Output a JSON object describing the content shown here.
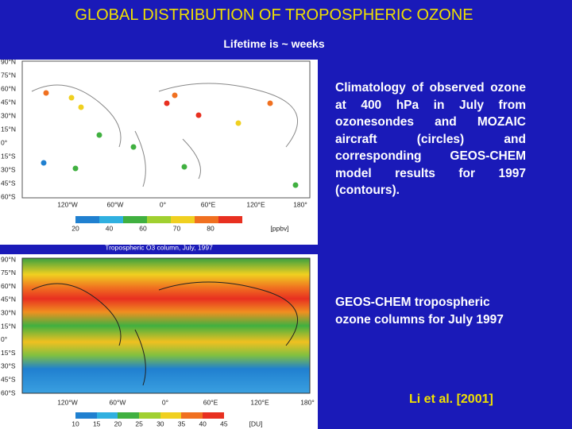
{
  "header": {
    "title": "GLOBAL DISTRIBUTION OF TROPOSPHERIC OZONE",
    "subtitle": "Lifetime is ~ weeks"
  },
  "map1": {
    "lat_labels": [
      "90°N",
      "75°N",
      "60°N",
      "45°N",
      "30°N",
      "15°N",
      "0°",
      "15°S",
      "30°S",
      "45°S",
      "60°S"
    ],
    "lon_labels": [
      "120°W",
      "60°W",
      "0°",
      "60°E",
      "120°E",
      "180°"
    ],
    "colorbar_ticks": [
      "20",
      "40",
      "60",
      "70",
      "80"
    ],
    "colorbar_unit": "[ppbv]"
  },
  "map2": {
    "caption": "Tropospheric O3 column, July, 1997",
    "lat_labels": [
      "90°N",
      "75°N",
      "60°N",
      "45°N",
      "30°N",
      "15°N",
      "0°",
      "15°S",
      "30°S",
      "45°S",
      "60°S"
    ],
    "lon_labels": [
      "120°W",
      "60°W",
      "0°",
      "60°E",
      "120°E",
      "180°"
    ],
    "colorbar_ticks": [
      "10",
      "15",
      "20",
      "25",
      "30",
      "35",
      "40",
      "45"
    ],
    "colorbar_unit": "[DU]"
  },
  "text": {
    "description1": "Climatology of observed ozone at 400 hPa in July from ozonesondes and MOZAIC aircraft (circles) and corresponding GEOS-CHEM model results for 1997 (contours).",
    "description2": "GEOS-CHEM tropospheric ozone columns for July 1997",
    "citation": "Li et al. [2001]"
  }
}
